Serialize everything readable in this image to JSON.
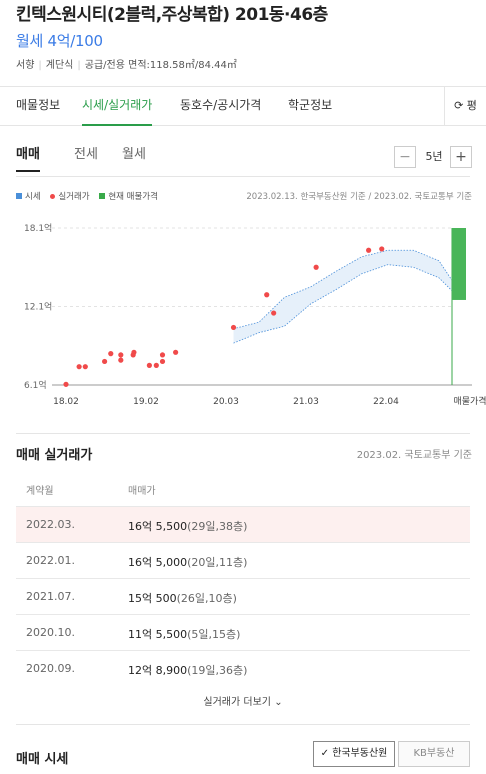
{
  "listing": {
    "title": "킨텍스원시티(2블럭,주상복합) 201동·46층",
    "price": "월세 4억/100",
    "specs": [
      "서향",
      "계단식",
      "공급/전용 면적:118.58㎡/84.44㎡"
    ]
  },
  "tabs": [
    {
      "label": "매물정보",
      "active": false
    },
    {
      "label": "시세/실거래가",
      "active": true
    },
    {
      "label": "동호수/공시가격",
      "active": false
    },
    {
      "label": "학군정보",
      "active": false
    }
  ],
  "refresh_tab": {
    "label": "평"
  },
  "subtabs": [
    {
      "label": "매매",
      "active": true
    },
    {
      "label": "전세",
      "active": false
    },
    {
      "label": "월세",
      "active": false
    }
  ],
  "period": {
    "minus": "−",
    "value": "5년",
    "plus": "+"
  },
  "legend": {
    "market": "시세",
    "transactions": "실거래가",
    "current": "현재 매물가격",
    "colors": {
      "market": "#4a8fd9",
      "transactions": "#f04a4a",
      "current": "#3aaa4a"
    }
  },
  "source_note": "2023.02.13. 한국부동산원 기준 / 2023.02. 국토교통부 기준",
  "chart_data": {
    "type": "scatter",
    "y_unit": "억",
    "ylim": [
      6.1,
      18.1
    ],
    "ytick_labels": [
      "18.1억",
      "12.1억",
      "6.1억"
    ],
    "yticks": [
      18.1,
      12.1,
      6.1
    ],
    "xtick_labels": [
      "18.02",
      "19.02",
      "20.03",
      "21.03",
      "22.04",
      "매물가격"
    ],
    "x_range": [
      2018.0,
      2023.0
    ],
    "series": [
      {
        "name": "실거래가",
        "points": [
          [
            2018.0,
            6.15
          ],
          [
            2018.17,
            7.5
          ],
          [
            2018.25,
            7.5
          ],
          [
            2018.5,
            7.9
          ],
          [
            2018.58,
            8.5
          ],
          [
            2018.71,
            8.0
          ],
          [
            2018.71,
            8.4
          ],
          [
            2018.87,
            8.4
          ],
          [
            2018.88,
            8.6
          ],
          [
            2019.08,
            7.6
          ],
          [
            2019.17,
            7.6
          ],
          [
            2019.25,
            7.9
          ],
          [
            2019.25,
            8.4
          ],
          [
            2019.42,
            8.6
          ],
          [
            2020.17,
            10.5
          ],
          [
            2020.6,
            13.0
          ],
          [
            2020.69,
            11.6
          ],
          [
            2021.24,
            15.1
          ],
          [
            2021.92,
            16.4
          ],
          [
            2022.09,
            16.5
          ]
        ]
      },
      {
        "name": "시세",
        "x": [
          2020.17,
          2020.5,
          2020.83,
          2021.17,
          2021.5,
          2021.83,
          2022.17,
          2022.5,
          2022.83,
          2023.0
        ],
        "upper": [
          10.4,
          10.9,
          12.8,
          13.6,
          14.8,
          15.9,
          16.4,
          16.4,
          15.6,
          14.1
        ],
        "lower": [
          9.3,
          10.1,
          10.6,
          12.3,
          13.4,
          14.6,
          15.3,
          15.1,
          14.3,
          13.3
        ]
      },
      {
        "name": "현재 매물가격",
        "range": [
          12.6,
          18.1
        ]
      }
    ]
  },
  "trades": {
    "title": "매매 실거래가",
    "note": "2023.02. 국토교통부 기준",
    "col_date": "계약월",
    "col_price": "매매가",
    "rows": [
      {
        "date": "2022.03.",
        "price": "16억 5,500",
        "detail": "(29일,38층)"
      },
      {
        "date": "2022.01.",
        "price": "16억 5,000",
        "detail": "(20일,11층)"
      },
      {
        "date": "2021.07.",
        "price": "15억 500",
        "detail": "(26일,10층)"
      },
      {
        "date": "2020.10.",
        "price": "11억 5,500",
        "detail": "(5일,15층)"
      },
      {
        "date": "2020.09.",
        "price": "12억 8,900",
        "detail": "(19일,36층)"
      }
    ],
    "more": "실거래가 더보기"
  },
  "market": {
    "title": "매매 시세",
    "sources": [
      {
        "label": "한국부동산원",
        "selected": true
      },
      {
        "label": "KB부동산",
        "selected": false
      }
    ]
  }
}
